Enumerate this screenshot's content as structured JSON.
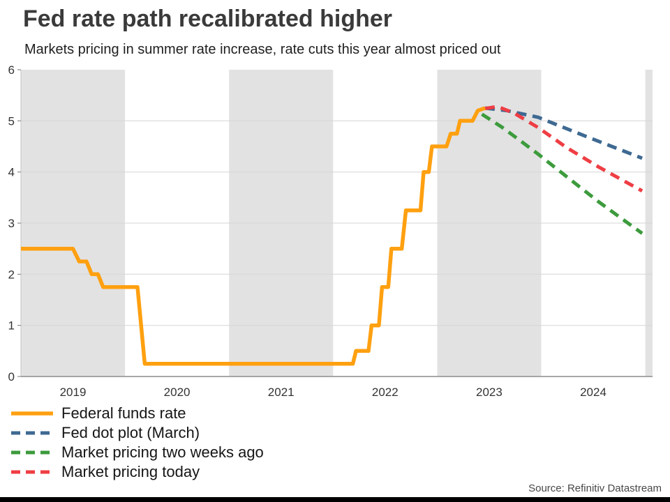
{
  "chart_data": {
    "type": "line",
    "title": "Fed rate path recalibrated higher",
    "subtitle": "Markets pricing in summer rate increase, rate cuts this year almost priced out",
    "source": "Source: Refinitiv Datastream",
    "x_range": [
      2019.0,
      2025.07
    ],
    "y_range": [
      0,
      6
    ],
    "y_ticks": [
      0,
      1,
      2,
      3,
      4,
      5,
      6
    ],
    "x_ticks": [
      {
        "label": "2019",
        "x": 2019.5
      },
      {
        "label": "2020",
        "x": 2020.5
      },
      {
        "label": "2021",
        "x": 2021.5
      },
      {
        "label": "2022",
        "x": 2022.5
      },
      {
        "label": "2023",
        "x": 2023.5
      },
      {
        "label": "2024",
        "x": 2024.5
      }
    ],
    "grid": "horizontal",
    "legend_position": "bottom-left",
    "band_color": "#e2e2e2",
    "grid_color": "#d6d6d6",
    "axis_color": "#8c8c8c",
    "tick_color": "#777777",
    "label_color": "#333333",
    "shaded_bands": [
      [
        2019.0,
        2020.0
      ],
      [
        2021.0,
        2022.0
      ],
      [
        2023.0,
        2024.0
      ],
      [
        2025.0,
        2025.07
      ]
    ],
    "series": [
      {
        "name": "Federal funds rate",
        "color": "#ffa010",
        "style": "solid",
        "width": 5.5,
        "points": [
          [
            2019.0,
            2.5
          ],
          [
            2019.5,
            2.5
          ],
          [
            2019.56,
            2.25
          ],
          [
            2019.63,
            2.25
          ],
          [
            2019.68,
            2.0
          ],
          [
            2019.74,
            2.0
          ],
          [
            2019.79,
            1.75
          ],
          [
            2020.12,
            1.75
          ],
          [
            2020.19,
            0.25
          ],
          [
            2022.19,
            0.25
          ],
          [
            2022.22,
            0.5
          ],
          [
            2022.34,
            0.5
          ],
          [
            2022.37,
            1.0
          ],
          [
            2022.44,
            1.0
          ],
          [
            2022.47,
            1.75
          ],
          [
            2022.53,
            1.75
          ],
          [
            2022.56,
            2.5
          ],
          [
            2022.66,
            2.5
          ],
          [
            2022.7,
            3.25
          ],
          [
            2022.84,
            3.25
          ],
          [
            2022.87,
            4.0
          ],
          [
            2022.92,
            4.0
          ],
          [
            2022.95,
            4.5
          ],
          [
            2023.09,
            4.5
          ],
          [
            2023.13,
            4.75
          ],
          [
            2023.19,
            4.75
          ],
          [
            2023.22,
            5.0
          ],
          [
            2023.34,
            5.0
          ],
          [
            2023.39,
            5.2
          ],
          [
            2023.46,
            5.25
          ]
        ]
      },
      {
        "name": "Fed dot plot (March)",
        "color": "#3e6992",
        "style": "dashed",
        "width": 5,
        "points": [
          [
            2023.46,
            5.25
          ],
          [
            2023.67,
            5.2
          ],
          [
            2023.97,
            5.07
          ],
          [
            2024.45,
            4.68
          ],
          [
            2024.97,
            4.27
          ]
        ]
      },
      {
        "name": "Market pricing two weeks ago",
        "color": "#3c9b3c",
        "style": "dashed",
        "width": 5,
        "points": [
          [
            2023.43,
            5.13
          ],
          [
            2023.62,
            4.88
          ],
          [
            2023.82,
            4.58
          ],
          [
            2023.97,
            4.35
          ],
          [
            2024.25,
            3.9
          ],
          [
            2024.55,
            3.42
          ],
          [
            2024.8,
            3.05
          ],
          [
            2024.97,
            2.8
          ]
        ]
      },
      {
        "name": "Market pricing today",
        "color": "#ee3e44",
        "style": "dashed",
        "width": 5,
        "points": [
          [
            2023.46,
            5.24
          ],
          [
            2023.58,
            5.28
          ],
          [
            2023.74,
            5.15
          ],
          [
            2023.97,
            4.87
          ],
          [
            2024.25,
            4.47
          ],
          [
            2024.55,
            4.1
          ],
          [
            2024.8,
            3.82
          ],
          [
            2024.97,
            3.63
          ]
        ]
      }
    ]
  }
}
